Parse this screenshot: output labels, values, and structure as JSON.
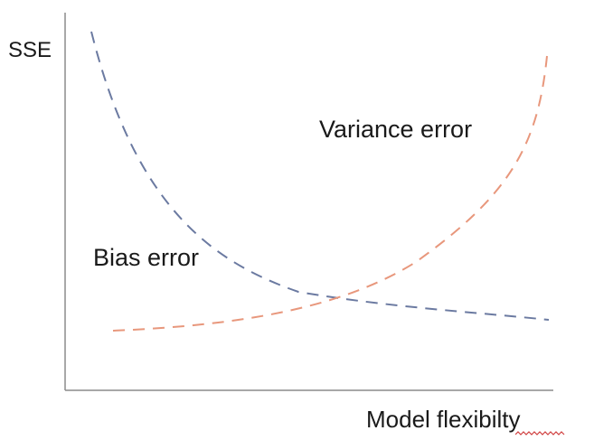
{
  "labels": {
    "y_axis": "SSE",
    "x_axis": "Model flexibilty",
    "variance_curve": "Variance error",
    "bias_curve": "Bias error"
  },
  "colors": {
    "axis": "#8c8c8c",
    "bias_curve": "#6b7aa1",
    "variance_curve": "#e8977c",
    "text": "#1a1a1a",
    "spellcheck_underline": "#d04040"
  },
  "curves": {
    "bias": {
      "label": "Bias error",
      "shape": "decreasing",
      "style": "dashed"
    },
    "variance": {
      "label": "Variance error",
      "shape": "increasing",
      "style": "dashed"
    }
  }
}
